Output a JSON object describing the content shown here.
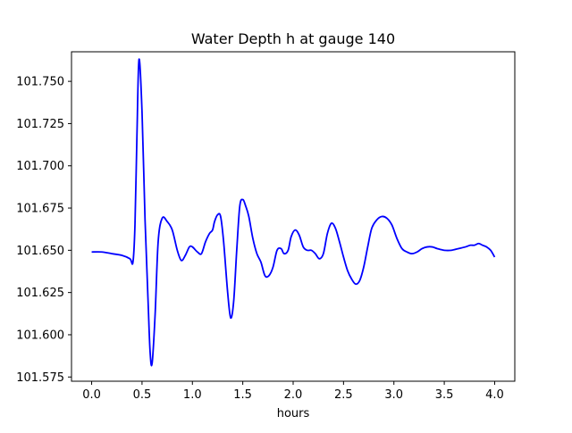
{
  "chart_data": {
    "type": "line",
    "title": "Water Depth h at gauge 140",
    "xlabel": "hours",
    "ylabel": "",
    "xlim": [
      -0.2,
      4.2
    ],
    "ylim": [
      101.5725,
      101.7675
    ],
    "grid": false,
    "xticks": [
      0.0,
      0.5,
      1.0,
      1.5,
      2.0,
      2.5,
      3.0,
      3.5,
      4.0
    ],
    "xtick_labels": [
      "0.0",
      "0.5",
      "1.0",
      "1.5",
      "2.0",
      "2.5",
      "3.0",
      "3.5",
      "4.0"
    ],
    "yticks": [
      101.575,
      101.6,
      101.625,
      101.65,
      101.675,
      101.7,
      101.725,
      101.75
    ],
    "ytick_labels": [
      "101.575",
      "101.600",
      "101.625",
      "101.650",
      "101.675",
      "101.700",
      "101.725",
      "101.750"
    ],
    "series": [
      {
        "color": "#0000ff",
        "x": [
          0.0,
          0.1,
          0.2,
          0.3,
          0.38,
          0.41,
          0.43,
          0.45,
          0.47,
          0.5,
          0.53,
          0.56,
          0.58,
          0.6,
          0.63,
          0.66,
          0.7,
          0.75,
          0.8,
          0.85,
          0.89,
          0.93,
          0.97,
          1.0,
          1.05,
          1.09,
          1.13,
          1.17,
          1.2,
          1.22,
          1.25,
          1.28,
          1.31,
          1.35,
          1.38,
          1.41,
          1.44,
          1.47,
          1.5,
          1.53,
          1.56,
          1.6,
          1.64,
          1.68,
          1.72,
          1.76,
          1.8,
          1.84,
          1.88,
          1.91,
          1.95,
          1.98,
          2.02,
          2.06,
          2.1,
          2.14,
          2.18,
          2.22,
          2.26,
          2.3,
          2.34,
          2.38,
          2.42,
          2.46,
          2.5,
          2.54,
          2.58,
          2.62,
          2.66,
          2.7,
          2.74,
          2.78,
          2.83,
          2.88,
          2.93,
          2.98,
          3.03,
          3.08,
          3.13,
          3.18,
          3.23,
          3.28,
          3.33,
          3.38,
          3.43,
          3.5,
          3.57,
          3.64,
          3.71,
          3.76,
          3.8,
          3.84,
          3.88,
          3.92,
          3.96,
          4.0
        ],
        "y": [
          101.649,
          101.649,
          101.648,
          101.647,
          101.645,
          101.643,
          101.665,
          101.719,
          101.763,
          101.732,
          101.668,
          101.62,
          101.59,
          101.583,
          101.612,
          101.655,
          101.669,
          101.667,
          101.662,
          101.65,
          101.644,
          101.647,
          101.652,
          101.652,
          101.649,
          101.648,
          101.655,
          101.66,
          101.662,
          101.667,
          101.671,
          101.67,
          101.655,
          101.625,
          101.61,
          101.62,
          101.65,
          101.676,
          101.68,
          101.676,
          101.67,
          101.657,
          101.648,
          101.643,
          101.635,
          101.635,
          101.64,
          101.65,
          101.651,
          101.648,
          101.65,
          101.658,
          101.662,
          101.659,
          101.652,
          101.65,
          101.65,
          101.648,
          101.645,
          101.648,
          101.66,
          101.666,
          101.663,
          101.655,
          101.646,
          101.638,
          101.633,
          101.63,
          101.632,
          101.64,
          101.652,
          101.663,
          101.668,
          101.67,
          101.669,
          101.665,
          101.657,
          101.651,
          101.649,
          101.648,
          101.649,
          101.651,
          101.652,
          101.652,
          101.651,
          101.65,
          101.65,
          101.651,
          101.652,
          101.653,
          101.653,
          101.654,
          101.653,
          101.652,
          101.65,
          101.646
        ]
      }
    ]
  }
}
